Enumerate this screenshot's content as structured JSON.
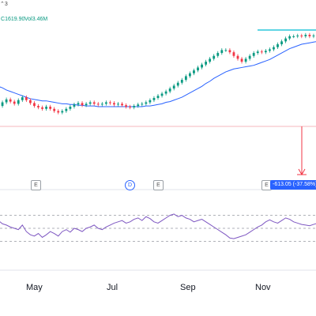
{
  "header": {
    "caret_label": "⌃3",
    "close_label": "C",
    "close_value": "1619.90",
    "volume_label": "Vol",
    "volume_value": "3.46M"
  },
  "events": {
    "earnings_label": "E",
    "dividend_label": "D"
  },
  "measurement": {
    "label": "-613.05 (-37.58%)"
  },
  "time_axis": {
    "months": [
      "May",
      "Jul",
      "Sep",
      "Nov"
    ]
  },
  "colors": {
    "up": "#089981",
    "down": "#f23645",
    "ma": "#2962ff",
    "rsi": "#7e57c2",
    "measure": "#f23645",
    "target_line": "#00bcd4"
  },
  "chart_data": {
    "type": "candlestick",
    "series": [
      {
        "name": "price",
        "values": [
          121,
          126,
          130,
          127,
          124,
          129,
          133,
          129,
          125,
          121,
          119,
          117,
          120,
          117,
          114,
          112,
          114,
          117,
          120,
          123,
          125,
          122,
          124,
          126,
          124,
          123,
          124,
          126,
          125,
          123,
          124,
          122,
          120,
          119,
          121,
          123,
          124,
          126,
          129,
          132,
          135,
          138,
          141,
          145,
          149,
          153,
          157,
          162,
          166,
          170,
          174,
          178,
          182,
          186,
          190,
          194,
          198,
          198,
          195,
          190,
          186,
          182,
          186,
          190,
          194,
          196,
          195,
          197,
          199,
          202,
          206,
          210,
          214,
          217,
          217,
          218,
          217,
          219,
          217,
          218,
          219
        ]
      },
      {
        "name": "moving average",
        "values": [
          148,
          146,
          143,
          141,
          139,
          137,
          135,
          133,
          131,
          130,
          129,
          128,
          128,
          127,
          126,
          125,
          124,
          124,
          123,
          123,
          122,
          122,
          121,
          121,
          121,
          120,
          120,
          120,
          120,
          120,
          120,
          120,
          120,
          120,
          120,
          120,
          120,
          121,
          121,
          122,
          123,
          124,
          126,
          127,
          129,
          131,
          133,
          136,
          139,
          142,
          145,
          148,
          152,
          155,
          159,
          162,
          165,
          168,
          170,
          172,
          173,
          174,
          175,
          176,
          177,
          179,
          181,
          183,
          185,
          188,
          191,
          194,
          197,
          200,
          202,
          204,
          206,
          207,
          208,
          209,
          210
        ]
      }
    ],
    "rsi": [
      62,
      57,
      55,
      52,
      50,
      48,
      55,
      45,
      40,
      38,
      42,
      36,
      40,
      45,
      42,
      38,
      45,
      48,
      44,
      50,
      48,
      45,
      50,
      52,
      55,
      50,
      48,
      52,
      55,
      58,
      60,
      62,
      58,
      60,
      64,
      66,
      62,
      68,
      65,
      60,
      58,
      62,
      66,
      70,
      72,
      68,
      70,
      66,
      64,
      60,
      62,
      64,
      60,
      56,
      52,
      48,
      44,
      40,
      35,
      34,
      36,
      38,
      40,
      44,
      48,
      52,
      55,
      60,
      63,
      60,
      58,
      62,
      66,
      64,
      60,
      58,
      56,
      55,
      54,
      56,
      58
    ],
    "rsi_levels": [
      70,
      50,
      30
    ]
  }
}
